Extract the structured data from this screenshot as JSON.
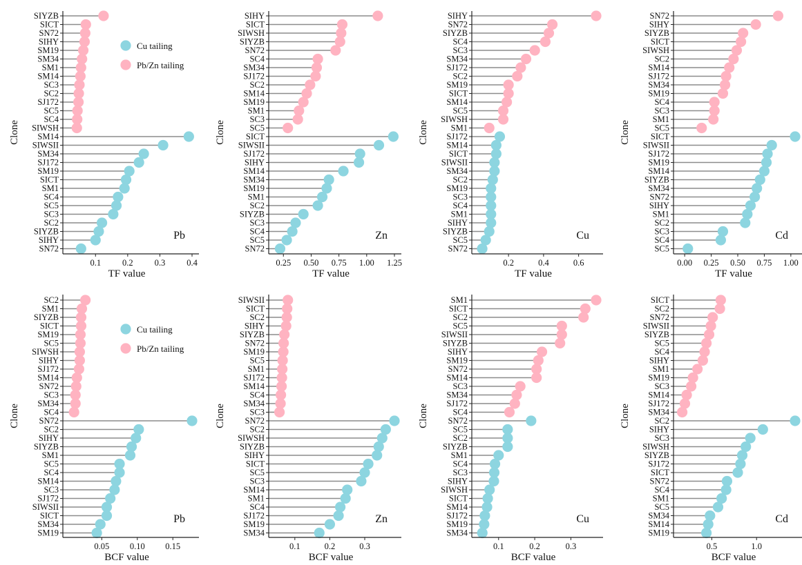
{
  "colors": {
    "cu": "#8dd5e0",
    "pbzn": "#ffb3c1",
    "stem": "#8c8c8c",
    "axis": "#222222"
  },
  "legend": [
    {
      "label": "Cu tailing",
      "color": "#8dd5e0"
    },
    {
      "label": "Pb/Zn tailing",
      "color": "#ffb3c1"
    }
  ],
  "chart_data": [
    {
      "type": "lollipop",
      "metal": "Pb",
      "xlabel": "TF value",
      "ylabel": "Clone",
      "xlim": [
        0.02,
        0.4
      ],
      "xticks": [
        0.1,
        0.2,
        0.3,
        0.4
      ],
      "xtick_labels": [
        "0.1",
        "0.2",
        "0.3",
        "0.4"
      ],
      "legend": true,
      "pbzn": {
        "clones": [
          "SIYZB",
          "SICT",
          "SN72",
          "SIHY",
          "SM19",
          "SM34",
          "SM1",
          "SM14",
          "SC3",
          "SC2",
          "SJ172",
          "SC5",
          "SC4",
          "SIWSH"
        ],
        "values": [
          0.125,
          0.07,
          0.068,
          0.066,
          0.062,
          0.058,
          0.055,
          0.053,
          0.05,
          0.048,
          0.047,
          0.044,
          0.043,
          0.042
        ]
      },
      "cu": {
        "clones": [
          "SM14",
          "SIWSII",
          "SM34",
          "SJ172",
          "SM19",
          "SICT",
          "SM1",
          "SC4",
          "SC5",
          "SC3",
          "SC2",
          "SIYZB",
          "SIHY",
          "SN72"
        ],
        "values": [
          0.39,
          0.31,
          0.25,
          0.235,
          0.205,
          0.195,
          0.19,
          0.17,
          0.165,
          0.155,
          0.12,
          0.11,
          0.1,
          0.055
        ]
      }
    },
    {
      "type": "lollipop",
      "metal": "Zn",
      "xlabel": "TF value",
      "ylabel": "Clone",
      "xlim": [
        0.18,
        1.25
      ],
      "xticks": [
        0.25,
        0.5,
        0.75,
        1.0,
        1.25
      ],
      "xtick_labels": [
        "0.25",
        "0.50",
        "0.75",
        "1.00",
        "1.25"
      ],
      "legend": false,
      "pbzn": {
        "clones": [
          "SIHY",
          "SICT",
          "SIWSH",
          "SIYZB",
          "SN72",
          "SC4",
          "SM34",
          "SJ172",
          "SC2",
          "SM14",
          "SM19",
          "SM1",
          "SC3",
          "SC5"
        ],
        "values": [
          1.1,
          0.78,
          0.77,
          0.76,
          0.72,
          0.56,
          0.55,
          0.54,
          0.49,
          0.46,
          0.43,
          0.39,
          0.38,
          0.29
        ]
      },
      "cu": {
        "clones": [
          "SICT",
          "SIWSII",
          "SJ172",
          "SIHY",
          "SM14",
          "SM34",
          "SM19",
          "SM1",
          "SC2",
          "SIYZB",
          "SC3",
          "SC4",
          "SC5",
          "SN72"
        ],
        "values": [
          1.24,
          1.11,
          0.94,
          0.93,
          0.79,
          0.66,
          0.64,
          0.6,
          0.56,
          0.43,
          0.36,
          0.33,
          0.28,
          0.22
        ]
      }
    },
    {
      "type": "lollipop",
      "metal": "Cu",
      "xlabel": "TF value",
      "ylabel": "Clone",
      "xlim": [
        0.03,
        0.7
      ],
      "xticks": [
        0.2,
        0.4,
        0.6
      ],
      "xtick_labels": [
        "0.2",
        "0.4",
        "0.6"
      ],
      "legend": false,
      "pbzn": {
        "clones": [
          "SIHY",
          "SN72",
          "SIYZB",
          "SC4",
          "SC3",
          "SM34",
          "SJ172",
          "SC2",
          "SM19",
          "SICT",
          "SM14",
          "SC5",
          "SIWSH",
          "SM1"
        ],
        "values": [
          0.7,
          0.45,
          0.43,
          0.41,
          0.35,
          0.3,
          0.27,
          0.25,
          0.2,
          0.2,
          0.19,
          0.17,
          0.17,
          0.09
        ]
      },
      "cu": {
        "clones": [
          "SJ172",
          "SM14",
          "SICT",
          "SIWSII",
          "SM34",
          "SC2",
          "SM19",
          "SC3",
          "SC4",
          "SM1",
          "SIHY",
          "SIYZB",
          "SC5",
          "SN72"
        ],
        "values": [
          0.15,
          0.13,
          0.13,
          0.12,
          0.12,
          0.11,
          0.1,
          0.1,
          0.1,
          0.1,
          0.1,
          0.09,
          0.07,
          0.05
        ]
      }
    },
    {
      "type": "lollipop",
      "metal": "Cd",
      "xlabel": "TF value",
      "ylabel": "Clone",
      "xlim": [
        -0.04,
        1.04
      ],
      "xticks": [
        0.0,
        0.25,
        0.5,
        0.75,
        1.0
      ],
      "xtick_labels": [
        "0.00",
        "0.25",
        "0.50",
        "0.75",
        "1.00"
      ],
      "legend": false,
      "pbzn": {
        "clones": [
          "SN72",
          "SIHY",
          "SIYZB",
          "SICT",
          "SIWSH",
          "SC2",
          "SM14",
          "SJ172",
          "SM34",
          "SM19",
          "SC4",
          "SC3",
          "SM1",
          "SC5"
        ],
        "values": [
          0.88,
          0.67,
          0.55,
          0.53,
          0.49,
          0.46,
          0.42,
          0.39,
          0.38,
          0.36,
          0.28,
          0.28,
          0.27,
          0.16
        ]
      },
      "cu": {
        "clones": [
          "SICT",
          "SIWSII",
          "SJ172",
          "SM19",
          "SM14",
          "SIYZB",
          "SM34",
          "SN72",
          "SIHY",
          "SM1",
          "SC2",
          "SC3",
          "SC4",
          "SC5"
        ],
        "values": [
          1.04,
          0.82,
          0.78,
          0.77,
          0.75,
          0.71,
          0.68,
          0.66,
          0.62,
          0.59,
          0.57,
          0.36,
          0.34,
          0.03
        ]
      }
    },
    {
      "type": "lollipop",
      "metal": "Pb",
      "xlabel": "BCF value",
      "ylabel": "Clone",
      "xlim": [
        0.005,
        0.177
      ],
      "xticks": [
        0.05,
        0.1,
        0.15
      ],
      "xtick_labels": [
        "0.05",
        "0.10",
        "0.15"
      ],
      "legend": true,
      "pbzn": {
        "clones": [
          "SC2",
          "SM1",
          "SIYZB",
          "SICT",
          "SM19",
          "SC5",
          "SIWSH",
          "SIHY",
          "SJ172",
          "SM14",
          "SN72",
          "SC3",
          "SM34",
          "SC4"
        ],
        "values": [
          0.027,
          0.022,
          0.021,
          0.021,
          0.02,
          0.02,
          0.019,
          0.019,
          0.018,
          0.015,
          0.014,
          0.013,
          0.013,
          0.011
        ]
      },
      "cu": {
        "clones": [
          "SN72",
          "SC2",
          "SIHY",
          "SIYZB",
          "SM1",
          "SC5",
          "SC4",
          "SM14",
          "SC3",
          "SJ172",
          "SIWSII",
          "SICT",
          "SM34",
          "SM19"
        ],
        "values": [
          0.177,
          0.102,
          0.098,
          0.092,
          0.09,
          0.075,
          0.075,
          0.07,
          0.068,
          0.062,
          0.057,
          0.057,
          0.048,
          0.043
        ]
      }
    },
    {
      "type": "lollipop",
      "metal": "Zn",
      "xlabel": "BCF value",
      "ylabel": "Clone",
      "xlim": [
        0.045,
        0.385
      ],
      "xticks": [
        0.1,
        0.2,
        0.3
      ],
      "xtick_labels": [
        "0.1",
        "0.2",
        "0.3"
      ],
      "legend": false,
      "pbzn": {
        "clones": [
          "SIWSII",
          "SICT",
          "SC2",
          "SIHY",
          "SIYZB",
          "SN72",
          "SM19",
          "SC5",
          "SM1",
          "SJ172",
          "SM14",
          "SC4",
          "SM34",
          "SC3"
        ],
        "values": [
          0.08,
          0.078,
          0.077,
          0.075,
          0.07,
          0.068,
          0.067,
          0.065,
          0.064,
          0.063,
          0.062,
          0.06,
          0.059,
          0.056
        ]
      },
      "cu": {
        "clones": [
          "SN72",
          "SC2",
          "SIWSH",
          "SIYZB",
          "SIHY",
          "SICT",
          "SC5",
          "SC3",
          "SM14",
          "SM1",
          "SC4",
          "SJ172",
          "SM19",
          "SM34"
        ],
        "values": [
          0.385,
          0.36,
          0.35,
          0.34,
          0.335,
          0.31,
          0.3,
          0.29,
          0.25,
          0.245,
          0.23,
          0.225,
          0.2,
          0.17
        ]
      }
    },
    {
      "type": "lollipop",
      "metal": "Cu",
      "xlabel": "BCF value",
      "ylabel": "Clone",
      "xlim": [
        0.045,
        0.37
      ],
      "xticks": [
        0.1,
        0.2,
        0.3
      ],
      "xtick_labels": [
        "0.1",
        "0.2",
        "0.3"
      ],
      "legend": false,
      "pbzn": {
        "clones": [
          "SM1",
          "SICT",
          "SC2",
          "SC5",
          "SIWSII",
          "SIYZB",
          "SIHY",
          "SM19",
          "SN72",
          "SM14",
          "SC3",
          "SM34",
          "SJ172",
          "SC4"
        ],
        "values": [
          0.37,
          0.34,
          0.335,
          0.275,
          0.275,
          0.27,
          0.22,
          0.21,
          0.205,
          0.205,
          0.16,
          0.15,
          0.145,
          0.13
        ]
      },
      "cu": {
        "clones": [
          "SN72",
          "SC5",
          "SC2",
          "SIYZB",
          "SM1",
          "SC4",
          "SC3",
          "SIHY",
          "SIWSH",
          "SICT",
          "SM14",
          "SJ172",
          "SM19",
          "SM34"
        ],
        "values": [
          0.19,
          0.125,
          0.125,
          0.125,
          0.1,
          0.09,
          0.088,
          0.087,
          0.075,
          0.07,
          0.068,
          0.062,
          0.06,
          0.055
        ]
      }
    },
    {
      "type": "lollipop",
      "metal": "Cd",
      "xlabel": "BCF value",
      "ylabel": "Clone",
      "xlim": [
        0.15,
        1.43
      ],
      "xticks": [
        0.5,
        1.0
      ],
      "xtick_labels": [
        "0.5",
        "1.0"
      ],
      "legend": false,
      "pbzn": {
        "clones": [
          "SICT",
          "SC2",
          "SN72",
          "SIWSII",
          "SIYZB",
          "SC5",
          "SC4",
          "SIHY",
          "SM1",
          "SM19",
          "SC3",
          "SM14",
          "SJ172",
          "SM34"
        ],
        "values": [
          0.6,
          0.59,
          0.51,
          0.49,
          0.47,
          0.44,
          0.42,
          0.4,
          0.34,
          0.29,
          0.27,
          0.22,
          0.2,
          0.17
        ]
      },
      "cu": {
        "clones": [
          "SC2",
          "SIHY",
          "SC3",
          "SIWSH",
          "SIYZB",
          "SJ172",
          "SICT",
          "SN72",
          "SC4",
          "SM1",
          "SC5",
          "SM34",
          "SM14",
          "SM19"
        ],
        "values": [
          1.43,
          1.07,
          0.93,
          0.88,
          0.84,
          0.82,
          0.79,
          0.67,
          0.66,
          0.61,
          0.57,
          0.48,
          0.46,
          0.44
        ]
      }
    }
  ]
}
